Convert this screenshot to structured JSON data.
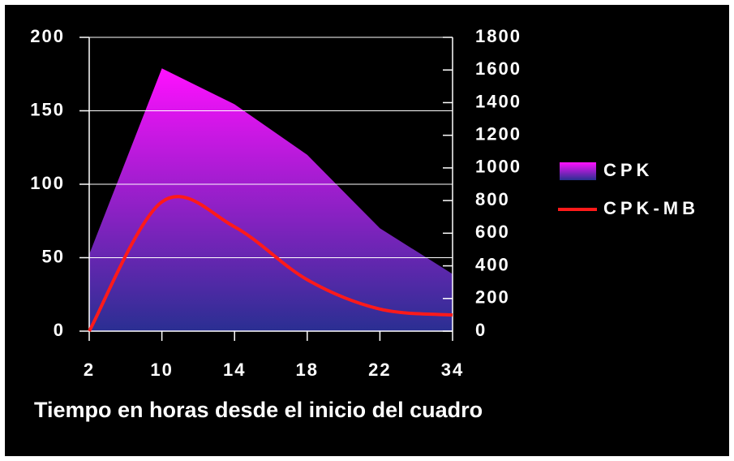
{
  "chart_data": {
    "type": "area-line",
    "x_label": "Tiempo en horas desde el inicio del cuadro",
    "categories": [
      "2",
      "10",
      "14",
      "18",
      "22",
      "34"
    ],
    "series": [
      {
        "name": "CPK",
        "type": "area",
        "axis": "y2",
        "color": "#ff10ff",
        "values": [
          470,
          1610,
          1390,
          1080,
          630,
          350
        ]
      },
      {
        "name": "CPK-MB",
        "type": "line",
        "color": "#ff1a1a",
        "values": [
          0,
          88,
          71,
          35,
          15,
          11
        ]
      }
    ],
    "ylim": [
      0,
      200
    ],
    "yticks": [
      0,
      50,
      100,
      150,
      200
    ],
    "y2lim": [
      0,
      1800
    ],
    "y2ticks": [
      0,
      200,
      400,
      600,
      800,
      1000,
      1200,
      1400,
      1600,
      1800
    ],
    "grid": true,
    "legend": "right"
  }
}
